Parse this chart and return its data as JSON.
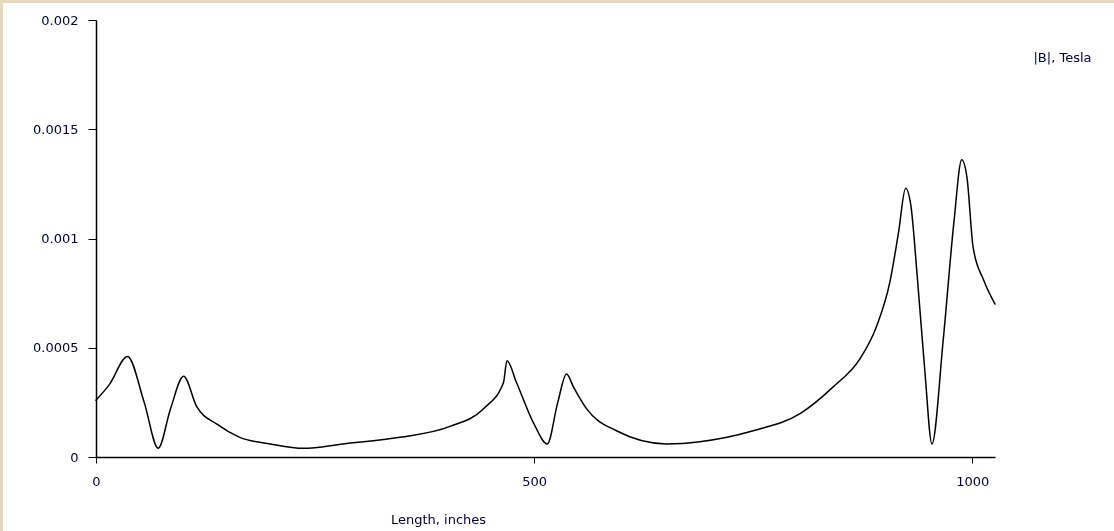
{
  "chart_data": {
    "type": "line",
    "xlabel": "Length, inches",
    "ylabel": "|B|, Tesla",
    "xlim": [
      0,
      1026
    ],
    "xticks": [
      0,
      500,
      1000
    ],
    "ylim": [
      0,
      0.002
    ],
    "yticks": [
      0,
      0.0005,
      0.001,
      0.0015,
      0.002
    ],
    "grid": false,
    "series": [
      {
        "color": "#000000",
        "x": [
          0,
          15,
          36,
          55,
          71,
          85,
          100,
          115,
          138,
          164,
          199,
          237,
          282,
          347,
          404,
          442,
          465,
          469,
          480,
          500,
          515,
          527,
          537,
          545,
          560,
          594,
          651,
          689,
          750,
          804,
          841,
          872,
          891,
          906,
          916,
          924,
          930,
          937,
          946,
          954,
          967,
          979,
          988,
          994,
          1001,
          1013,
          1026
        ],
        "values": [
          0.00026,
          0.00033,
          0.00046,
          0.00025,
          4e-05,
          0.00022,
          0.00037,
          0.00023,
          0.00015,
          9e-05,
          6e-05,
          4e-05,
          6e-05,
          9e-05,
          0.00014,
          0.00022,
          0.00034,
          0.00044,
          0.00034,
          0.00015,
          6e-05,
          0.00025,
          0.00038,
          0.00032,
          0.00022,
          0.00012,
          6e-05,
          7e-05,
          0.00012,
          0.0002,
          0.00032,
          0.00045,
          0.0006,
          0.0008,
          0.00103,
          0.00123,
          0.00115,
          0.00084,
          0.00039,
          6e-05,
          0.00054,
          0.00107,
          0.00136,
          0.00128,
          0.00096,
          0.00081,
          0.0007
        ]
      }
    ]
  }
}
